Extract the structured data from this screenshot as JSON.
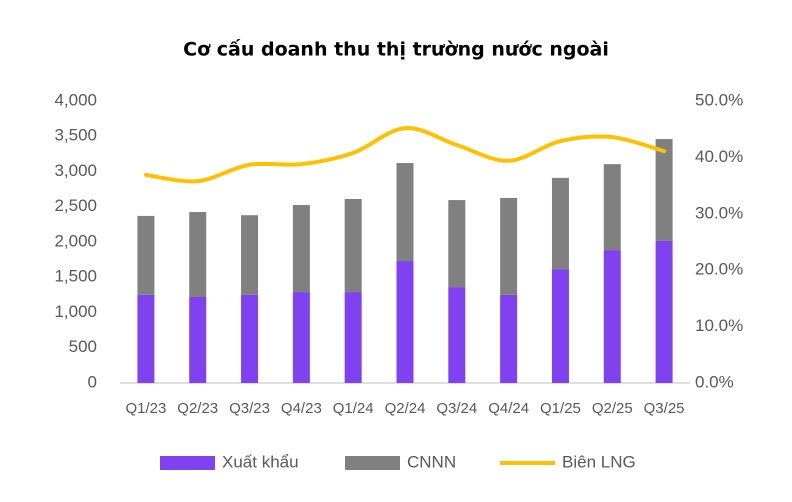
{
  "chart_data": {
    "type": "bar",
    "stacked": true,
    "title": "Cơ cấu doanh thu thị trường nước ngoài",
    "categories": [
      "Q1/23",
      "Q2/23",
      "Q3/23",
      "Q4/23",
      "Q1/24",
      "Q2/24",
      "Q3/24",
      "Q4/24",
      "Q1/25",
      "Q2/25",
      "Q3/25"
    ],
    "series": [
      {
        "name": "Xuất khẩu",
        "color": "#8041f0",
        "values": [
          1250,
          1220,
          1250,
          1290,
          1290,
          1730,
          1360,
          1250,
          1615,
          1885,
          2015
        ]
      },
      {
        "name": "CNNN",
        "color": "#808080",
        "values": [
          1120,
          1205,
          1130,
          1235,
          1320,
          1390,
          1235,
          1375,
          1295,
          1220,
          1445
        ]
      },
      {
        "name": "Biên LNG",
        "color": "#ffc000",
        "type": "line",
        "axis": "y2",
        "values": [
          36.9,
          35.8,
          38.7,
          38.8,
          40.8,
          45.2,
          42.2,
          39.4,
          42.9,
          43.6,
          41.1
        ]
      }
    ],
    "ylim": [
      0,
      4000
    ],
    "yticks": [
      0,
      500,
      {
        "value": 1000,
        "label": "1,000"
      },
      {
        "value": 1500,
        "label": "1,500"
      },
      {
        "value": 2000,
        "label": "2,000"
      },
      {
        "value": 2500,
        "label": "2,500"
      },
      {
        "value": 3000,
        "label": "3,000"
      },
      {
        "value": 3500,
        "label": "3,500"
      },
      {
        "value": 4000,
        "label": "4,000"
      }
    ],
    "y2lim": [
      0,
      50
    ],
    "y2ticks": [
      {
        "value": 0,
        "label": "0.0%"
      },
      {
        "value": 10,
        "label": "10.0%"
      },
      {
        "value": 20,
        "label": "20.0%"
      },
      {
        "value": 30,
        "label": "30.0%"
      },
      {
        "value": 40,
        "label": "40.0%"
      },
      {
        "value": 50,
        "label": "50.0%"
      }
    ],
    "legend": "bottom"
  }
}
